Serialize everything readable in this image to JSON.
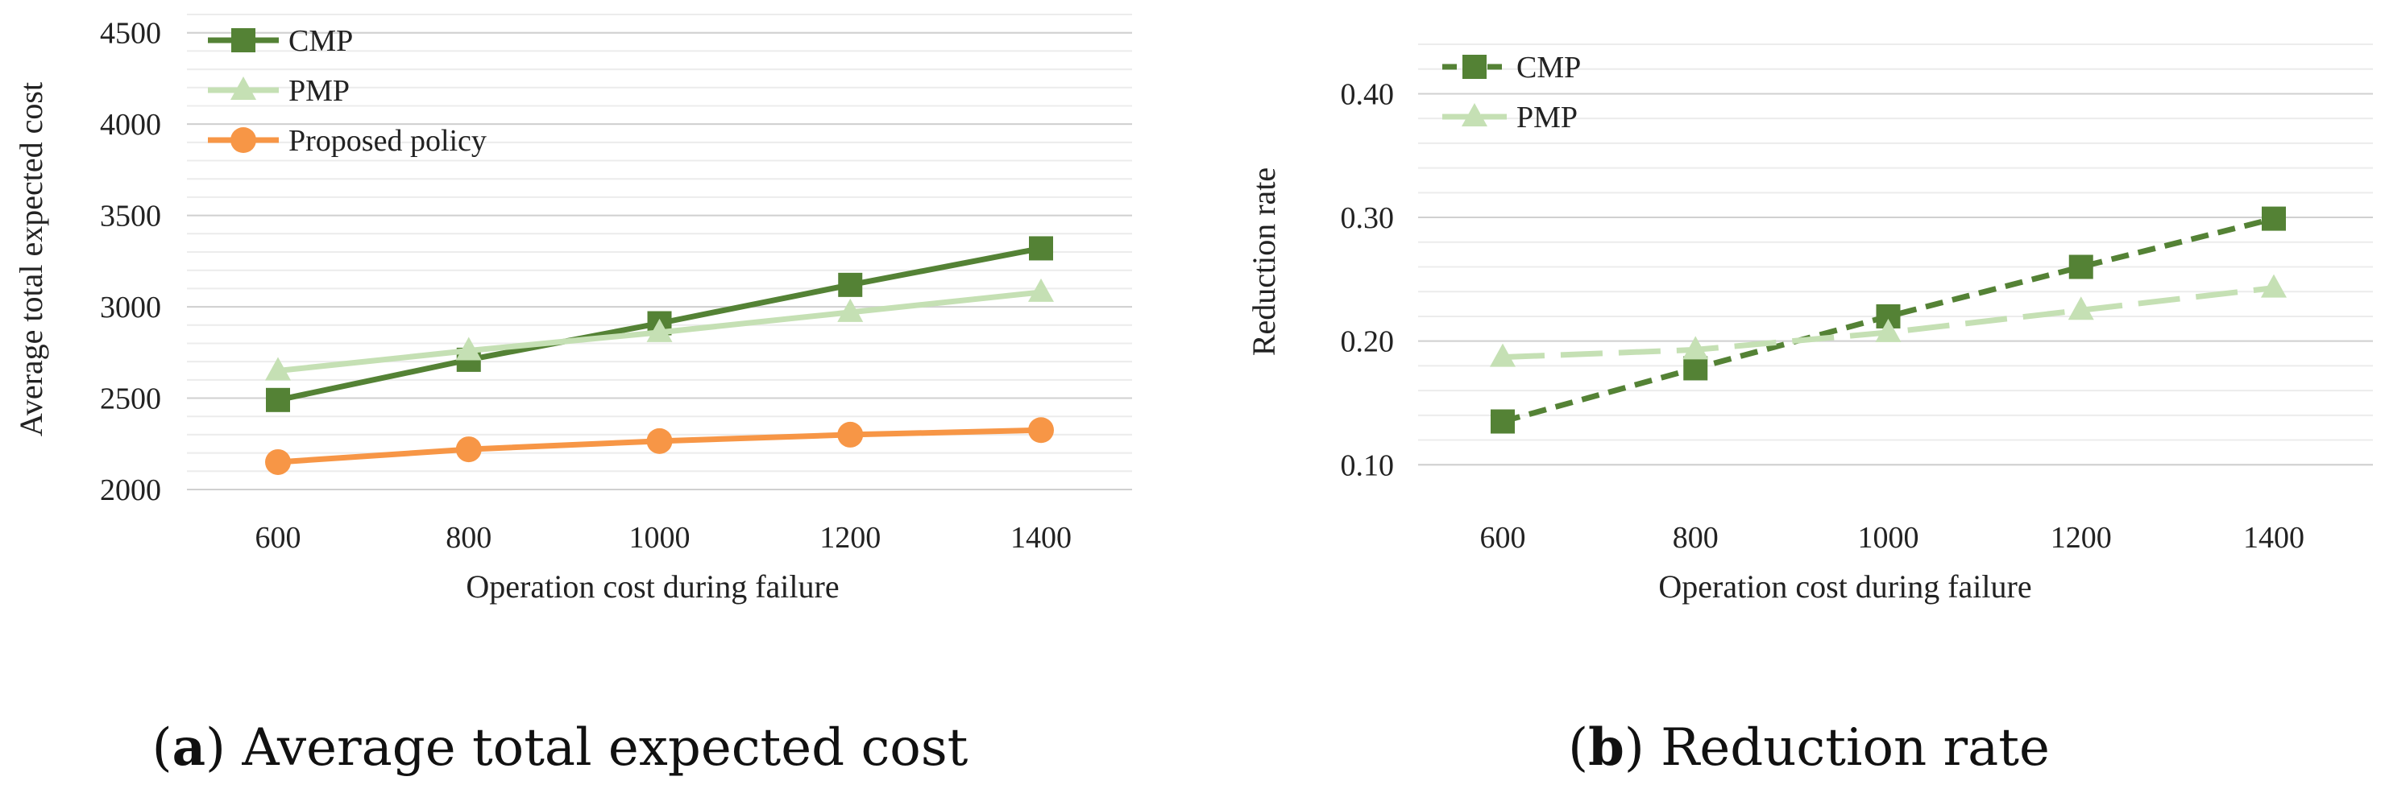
{
  "chart_data": [
    {
      "id": "a",
      "type": "line",
      "caption": {
        "letter": "a",
        "text": "Average total expected cost"
      },
      "xlabel": "Operation cost during failure",
      "ylabel": "Average total expected cost",
      "categories": [
        "600",
        "800",
        "1000",
        "1200",
        "1400"
      ],
      "ylim": [
        2000,
        4600
      ],
      "yticks": [
        2000,
        2500,
        3000,
        3500,
        4000,
        4500
      ],
      "grid": true,
      "legend": "top-left",
      "series": [
        {
          "name": "CMP",
          "values": [
            2490,
            2710,
            2910,
            3120,
            3320
          ],
          "color": "#548235",
          "marker": "square",
          "dash": "solid"
        },
        {
          "name": "PMP",
          "values": [
            2650,
            2760,
            2860,
            2970,
            3080
          ],
          "color": "#c5e0b4",
          "marker": "triangle",
          "dash": "solid"
        },
        {
          "name": "Proposed policy",
          "values": [
            2150,
            2220,
            2265,
            2300,
            2325
          ],
          "color": "#f79646",
          "marker": "circle",
          "dash": "solid"
        }
      ]
    },
    {
      "id": "b",
      "type": "line",
      "caption": {
        "letter": "b",
        "text": "Reduction rate"
      },
      "xlabel": "Operation cost during failure",
      "ylabel": "Reduction rate",
      "categories": [
        "600",
        "800",
        "1000",
        "1200",
        "1400"
      ],
      "ylim": [
        0.08,
        0.44
      ],
      "yticks": [
        0.1,
        0.2,
        0.3,
        0.4
      ],
      "tick_format": 2,
      "grid": true,
      "legend": "top-left",
      "series": [
        {
          "name": "CMP",
          "values": [
            0.135,
            0.178,
            0.22,
            0.26,
            0.299
          ],
          "color": "#548235",
          "marker": "square",
          "dash": "short"
        },
        {
          "name": "PMP",
          "values": [
            0.187,
            0.193,
            0.207,
            0.225,
            0.243
          ],
          "color": "#c5e0b4",
          "marker": "triangle",
          "dash": "long"
        }
      ]
    }
  ]
}
